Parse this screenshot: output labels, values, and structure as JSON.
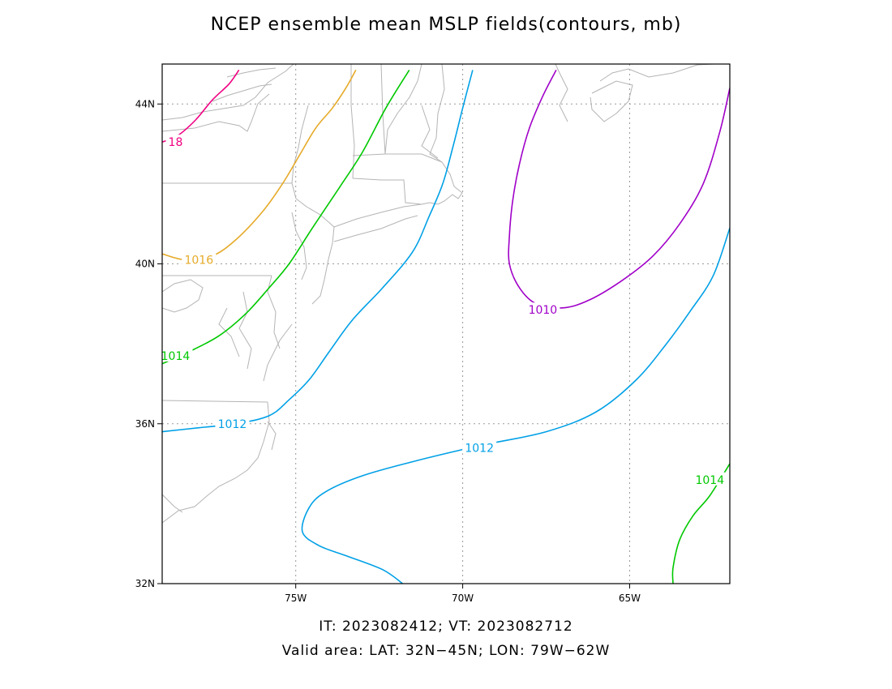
{
  "title": "NCEP ensemble mean MSLP fields(contours, mb)",
  "footer": {
    "line1": "IT: 2023082412; VT: 2023082712",
    "line2": "Valid area: LAT: 32N−45N; LON: 79W−62W"
  },
  "chart_data": {
    "type": "contour-map",
    "projection": "lat-lon",
    "lon_range": [
      -79,
      -62
    ],
    "lat_range": [
      32,
      45
    ],
    "grid": true,
    "x_ticks": [
      {
        "lon": -75,
        "label": "75W"
      },
      {
        "lon": -70,
        "label": "70W"
      },
      {
        "lon": -65,
        "label": "65W"
      }
    ],
    "y_ticks": [
      {
        "lat": 32,
        "label": "32N"
      },
      {
        "lat": 36,
        "label": "36N"
      },
      {
        "lat": 40,
        "label": "40N"
      },
      {
        "lat": 44,
        "label": "44N"
      }
    ],
    "colors": {
      "coastline": "#b4b4b4",
      "grid": "#9a9a9a",
      "c1010": "#a000c8",
      "c1012": "#00a0e6",
      "c1014": "#00c800",
      "c1016": "#e6aa28",
      "c1018": "#f00082"
    },
    "contours": [
      {
        "level": 1018,
        "label": "18",
        "color": "#f00082",
        "points": [
          [
            -79,
            43.05
          ],
          [
            -78.55,
            43.2
          ],
          [
            -78.0,
            43.6
          ],
          [
            -77.5,
            44.1
          ],
          [
            -77.0,
            44.5
          ],
          [
            -76.7,
            44.85
          ]
        ],
        "label_at": [
          -78.6,
          43.05
        ]
      },
      {
        "level": 1016,
        "label": "1016",
        "color": "#e6aa28",
        "points": [
          [
            -79,
            40.25
          ],
          [
            -78.3,
            40.1
          ],
          [
            -77.5,
            40.2
          ],
          [
            -76.8,
            40.6
          ],
          [
            -76.0,
            41.3
          ],
          [
            -75.4,
            42.0
          ],
          [
            -74.9,
            42.7
          ],
          [
            -74.4,
            43.4
          ],
          [
            -73.9,
            43.9
          ],
          [
            -73.5,
            44.4
          ],
          [
            -73.2,
            44.85
          ]
        ],
        "label_at": [
          -77.9,
          40.1
        ]
      },
      {
        "level": 1014,
        "label": "1014",
        "color": "#00c800",
        "points": [
          [
            -79,
            37.5
          ],
          [
            -78.2,
            37.8
          ],
          [
            -77.3,
            38.2
          ],
          [
            -76.5,
            38.75
          ],
          [
            -75.8,
            39.4
          ],
          [
            -75.2,
            40.0
          ],
          [
            -74.5,
            40.9
          ],
          [
            -73.7,
            41.9
          ],
          [
            -73.0,
            42.8
          ],
          [
            -72.3,
            43.9
          ],
          [
            -71.6,
            44.85
          ]
        ],
        "label_at": [
          -78.6,
          37.7
        ]
      },
      {
        "level": 1014,
        "label": "1014",
        "color": "#00c800",
        "points": [
          [
            -63.7,
            32.0
          ],
          [
            -63.7,
            32.4
          ],
          [
            -63.5,
            33.1
          ],
          [
            -63.1,
            33.7
          ],
          [
            -62.6,
            34.2
          ],
          [
            -62.0,
            35.0
          ]
        ],
        "label_at": [
          -62.6,
          34.6
        ]
      },
      {
        "level": 1012,
        "label": "1012",
        "color": "#00a0e6",
        "points": [
          [
            -79,
            35.8
          ],
          [
            -77.9,
            35.9
          ],
          [
            -76.8,
            36.0
          ],
          [
            -75.8,
            36.2
          ],
          [
            -75.2,
            36.6
          ],
          [
            -74.6,
            37.1
          ],
          [
            -74.0,
            37.8
          ],
          [
            -73.3,
            38.6
          ],
          [
            -72.4,
            39.4
          ],
          [
            -71.5,
            40.3
          ],
          [
            -71.0,
            41.2
          ],
          [
            -70.6,
            42.0
          ],
          [
            -70.3,
            42.9
          ],
          [
            -70.0,
            43.9
          ],
          [
            -69.7,
            44.85
          ]
        ],
        "label_at": [
          -76.9,
          36.0
        ]
      },
      {
        "level": 1012,
        "label": "1012",
        "color": "#00a0e6",
        "points": [
          [
            -71.8,
            32.0
          ],
          [
            -72.4,
            32.35
          ],
          [
            -73.5,
            32.7
          ],
          [
            -74.3,
            32.95
          ],
          [
            -74.8,
            33.3
          ],
          [
            -74.6,
            33.9
          ],
          [
            -74.1,
            34.3
          ],
          [
            -73.0,
            34.7
          ],
          [
            -71.5,
            35.05
          ],
          [
            -69.5,
            35.45
          ],
          [
            -67.5,
            35.8
          ],
          [
            -66.0,
            36.3
          ],
          [
            -64.8,
            37.1
          ],
          [
            -63.9,
            38.0
          ],
          [
            -63.2,
            38.8
          ],
          [
            -62.5,
            39.7
          ],
          [
            -62.0,
            40.9
          ]
        ],
        "label_at": [
          -69.5,
          35.4
        ]
      },
      {
        "level": 1010,
        "label": "1010",
        "color": "#a000c8",
        "points": [
          [
            -67.2,
            44.85
          ],
          [
            -67.6,
            44.2
          ],
          [
            -68.0,
            43.4
          ],
          [
            -68.3,
            42.5
          ],
          [
            -68.5,
            41.6
          ],
          [
            -68.6,
            40.7
          ],
          [
            -68.6,
            40.0
          ],
          [
            -68.3,
            39.4
          ],
          [
            -67.8,
            39.0
          ],
          [
            -67.0,
            38.9
          ],
          [
            -66.2,
            39.1
          ],
          [
            -65.2,
            39.6
          ],
          [
            -64.3,
            40.2
          ],
          [
            -63.5,
            41.0
          ],
          [
            -62.8,
            42.0
          ],
          [
            -62.3,
            43.3
          ],
          [
            -62.0,
            44.4
          ]
        ],
        "label_at": [
          -67.6,
          38.85
        ]
      }
    ]
  }
}
